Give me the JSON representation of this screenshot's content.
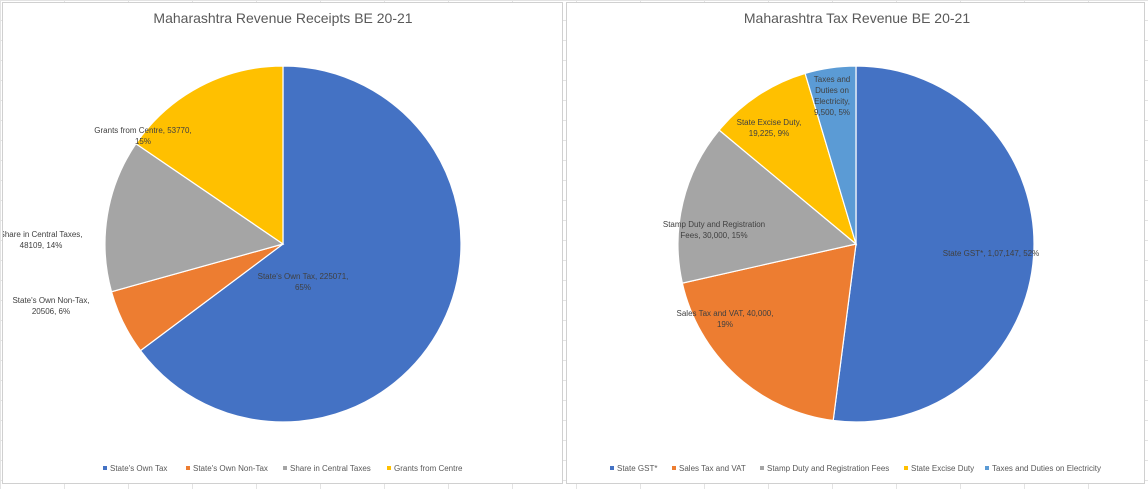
{
  "chart_data": [
    {
      "type": "pie",
      "title": "Maharashtra Revenue Receipts BE 20-21",
      "categories": [
        "State's Own Tax",
        "State's Own Non-Tax",
        "Share in Central Taxes",
        "Grants from Centre"
      ],
      "values": [
        225071,
        20506,
        48109,
        53770
      ],
      "percentages": [
        "65%",
        "6%",
        "14%",
        "15%"
      ],
      "colors": [
        "#4472c4",
        "#ed7d31",
        "#a5a5a5",
        "#ffc000"
      ],
      "data_labels": [
        [
          "State's Own Tax, 225071,",
          "65%"
        ],
        [
          "State's Own Non-Tax,",
          "20506, 6%"
        ],
        [
          "Share in Central Taxes,",
          "48109, 14%"
        ],
        [
          "Grants from Centre, 53770,",
          "15%"
        ]
      ],
      "legend": [
        "State's Own Tax",
        "State's Own Non-Tax",
        "Share in Central Taxes",
        "Grants from Centre"
      ],
      "legend_position": "bottom"
    },
    {
      "type": "pie",
      "title": "Maharashtra Tax Revenue BE 20-21",
      "categories": [
        "State GST*",
        "Sales Tax and VAT",
        "Stamp Duty and Registration Fees",
        "State Excise Duty",
        "Taxes and Duties on Electricity"
      ],
      "values": [
        107147,
        40000,
        30000,
        19225,
        9500
      ],
      "percentages": [
        "52%",
        "19%",
        "15%",
        "9%",
        "5%"
      ],
      "colors": [
        "#4472c4",
        "#ed7d31",
        "#a5a5a5",
        "#ffc000",
        "#5b9bd5"
      ],
      "data_labels": [
        [
          "State GST*, 1,07,147, 52%"
        ],
        [
          "Sales Tax and VAT, 40,000,",
          "19%"
        ],
        [
          "Stamp Duty and Registration",
          "Fees, 30,000, 15%"
        ],
        [
          "State Excise Duty,",
          "19,225, 9%"
        ],
        [
          "Taxes and",
          "Duties on",
          "Electricity,",
          "9,500, 5%"
        ]
      ],
      "legend": [
        "State GST*",
        "Sales Tax and VAT",
        "Stamp Duty and Registration Fees",
        "State Excise Duty",
        "Taxes and Duties on Electricity"
      ],
      "legend_position": "bottom"
    }
  ]
}
